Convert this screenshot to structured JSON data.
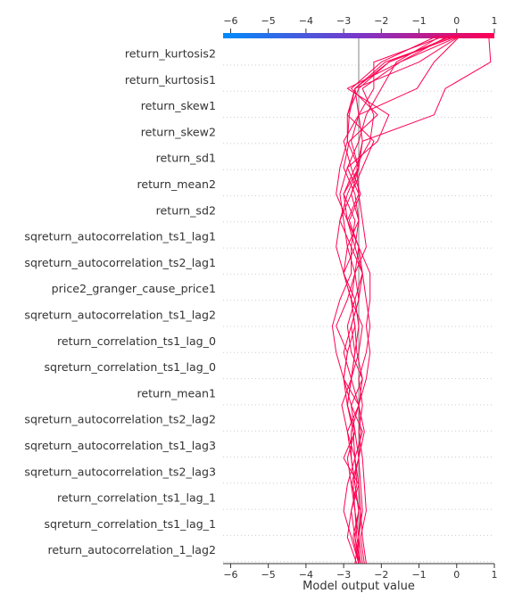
{
  "chart_data": {
    "type": "decision",
    "xlabel": "Model output value",
    "xlim": [
      -6.2,
      1.0
    ],
    "xticks": [
      -6,
      -5,
      -4,
      -3,
      -2,
      -1,
      0,
      1
    ],
    "base_value": -2.6,
    "colormap": [
      "#008bfb",
      "#7a37c9",
      "#ff0052"
    ],
    "line_color": "#ff0052",
    "features": [
      "return_kurtosis2",
      "return_kurtosis1",
      "return_skew1",
      "return_skew2",
      "return_sd1",
      "return_mean2",
      "return_sd2",
      "sqreturn_autocorrelation_ts1_lag1",
      "sqreturn_autocorrelation_ts2_lag1",
      "price2_granger_cause_price1",
      "sqreturn_autocorrelation_ts1_lag2",
      "return_correlation_ts1_lag_0",
      "sqreturn_correlation_ts1_lag_0",
      "return_mean1",
      "sqreturn_autocorrelation_ts2_lag2",
      "sqreturn_autocorrelation_ts1_lag3",
      "sqreturn_autocorrelation_ts2_lag3",
      "return_correlation_ts1_lag_1",
      "sqreturn_correlation_ts1_lag_1",
      "return_autocorrelation_1_lag2"
    ],
    "series": [
      {
        "values": [
          -2.65,
          -2.9,
          -2.8,
          -2.6,
          -3.0,
          -2.7,
          -2.9,
          -2.8,
          -2.7,
          -2.8,
          -2.6,
          -2.5,
          -2.7,
          -2.9,
          -3.0,
          -2.7,
          -2.3,
          -2.2,
          -2.5,
          -1.5,
          -0.2
        ]
      },
      {
        "values": [
          -2.6,
          -2.8,
          -3.0,
          -2.9,
          -2.7,
          -2.9,
          -3.05,
          -2.8,
          -2.7,
          -2.6,
          -2.7,
          -2.5,
          -2.8,
          -3.1,
          -2.8,
          -2.5,
          -2.2,
          -2.9,
          -2.7,
          -1.8,
          0.0
        ]
      },
      {
        "values": [
          -2.55,
          -2.7,
          -2.6,
          -2.7,
          -2.8,
          -2.9,
          -2.6,
          -2.8,
          -3.0,
          -2.8,
          -2.6,
          -2.7,
          -2.9,
          -3.0,
          -3.1,
          -2.9,
          -2.6,
          -2.4,
          -2.0,
          -1.6,
          -0.4
        ]
      },
      {
        "values": [
          -2.7,
          -2.6,
          -2.7,
          -2.8,
          -2.9,
          -2.7,
          -2.8,
          -3.0,
          -2.9,
          -2.7,
          -2.8,
          -3.0,
          -3.2,
          -3.1,
          -2.9,
          -2.6,
          -2.8,
          -2.6,
          -2.7,
          -1.9,
          0.05
        ]
      },
      {
        "values": [
          -2.5,
          -2.6,
          -2.55,
          -2.8,
          -2.6,
          -2.7,
          -2.9,
          -2.8,
          -2.6,
          -2.5,
          -2.8,
          -3.0,
          -2.7,
          -2.6,
          -2.7,
          -3.0,
          -2.85,
          -2.1,
          -2.8,
          -2.0,
          -0.5
        ]
      },
      {
        "values": [
          -2.6,
          -2.75,
          -2.6,
          -2.7,
          -2.8,
          -2.8,
          -2.6,
          -3.0,
          -2.9,
          -3.2,
          -2.9,
          -2.7,
          -2.6,
          -2.9,
          -3.2,
          -3.1,
          -2.9,
          -2.85,
          -2.7,
          -1.0,
          0.1
        ]
      },
      {
        "values": [
          -2.6,
          -2.7,
          -2.8,
          -2.65,
          -2.7,
          -2.75,
          -2.9,
          -3.0,
          -3.2,
          -3.3,
          -3.1,
          -2.8,
          -2.8,
          -2.7,
          -3.0,
          -2.6,
          -2.9,
          -2.9,
          -2.6,
          -1.8,
          -0.1
        ]
      },
      {
        "values": [
          -2.55,
          -2.65,
          -2.7,
          -2.75,
          -2.6,
          -2.55,
          -2.6,
          -2.4,
          -2.3,
          -2.4,
          -2.3,
          -2.3,
          -2.6,
          -2.85,
          -2.55,
          -2.8,
          -3.0,
          -2.6,
          -2.2,
          -2.2,
          -0.3
        ]
      },
      {
        "values": [
          -2.4,
          -2.5,
          -2.55,
          -2.6,
          -2.7,
          -2.5,
          -2.8,
          -2.5,
          -2.65,
          -2.7,
          -2.8,
          -2.7,
          -2.4,
          -2.5,
          -2.6,
          -2.9,
          -2.1,
          -1.8,
          -2.9,
          -1.5,
          0.1
        ]
      },
      {
        "values": [
          -2.6,
          -2.6,
          -2.5,
          -2.55,
          -2.6,
          -2.45,
          -2.6,
          -2.5,
          -2.8,
          -2.9,
          -2.7,
          -3.0,
          -2.9,
          -2.6,
          -2.8,
          -2.6,
          -2.5,
          -2.6,
          -1.05,
          -0.6,
          0.1
        ]
      },
      {
        "values": [
          -2.45,
          -2.55,
          -2.4,
          -2.45,
          -2.5,
          -2.6,
          -2.5,
          -2.6,
          -2.4,
          -2.3,
          -2.4,
          -2.5,
          -2.6,
          -2.9,
          -2.6,
          -2.65,
          -2.5,
          -0.6,
          -0.3,
          0.9,
          0.85
        ]
      }
    ]
  }
}
